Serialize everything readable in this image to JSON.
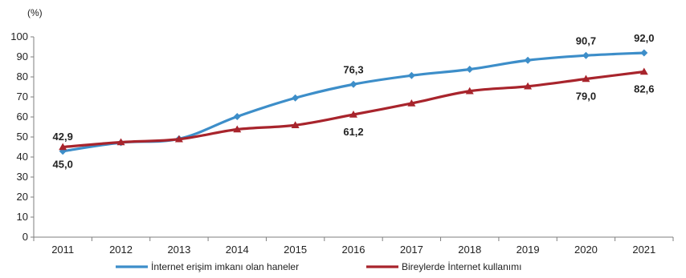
{
  "chart_data": {
    "type": "line",
    "ylabel": "(%)",
    "xlabel": "",
    "title": "",
    "ylim": [
      0,
      100
    ],
    "yticks": [
      0,
      10,
      20,
      30,
      40,
      50,
      60,
      70,
      80,
      90,
      100
    ],
    "categories": [
      "2011",
      "2012",
      "2013",
      "2014",
      "2015",
      "2016",
      "2017",
      "2018",
      "2019",
      "2020",
      "2021"
    ],
    "grid": false,
    "legend": "bottom",
    "series": [
      {
        "name": "İnternet erişim imkanı olan haneler",
        "color": "#3d8ec9",
        "marker": "diamond",
        "values": [
          42.9,
          47.2,
          49.1,
          60.2,
          69.5,
          76.3,
          80.7,
          83.8,
          88.3,
          90.7,
          92.0
        ],
        "labels": [
          {
            "index": 0,
            "text": "42,9",
            "pos": "above"
          },
          {
            "index": 5,
            "text": "76,3",
            "pos": "above"
          },
          {
            "index": 9,
            "text": "90,7",
            "pos": "above"
          },
          {
            "index": 10,
            "text": "92,0",
            "pos": "above"
          }
        ]
      },
      {
        "name": "Bireylerde İnternet kullanımı",
        "color": "#a8242c",
        "marker": "triangle",
        "values": [
          45.0,
          47.4,
          48.9,
          53.8,
          55.9,
          61.2,
          66.8,
          72.9,
          75.3,
          79.0,
          82.6
        ],
        "labels": [
          {
            "index": 0,
            "text": "45,0",
            "pos": "below"
          },
          {
            "index": 5,
            "text": "61,2",
            "pos": "below"
          },
          {
            "index": 9,
            "text": "79,0",
            "pos": "below"
          },
          {
            "index": 10,
            "text": "82,6",
            "pos": "below"
          }
        ]
      }
    ]
  }
}
